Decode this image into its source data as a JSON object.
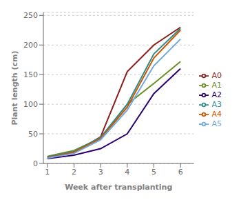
{
  "chart_data": {
    "type": "line",
    "xlabel": "Week after transplanting",
    "ylabel": "Plant length (cm)",
    "x": [
      1,
      2,
      3,
      4,
      5,
      6
    ],
    "series": [
      {
        "name": "A0",
        "color": "#8B1A1A",
        "values": [
          10,
          18,
          45,
          155,
          200,
          230
        ]
      },
      {
        "name": "A1",
        "color": "#6B8E23",
        "values": [
          12,
          22,
          43,
          100,
          135,
          172
        ]
      },
      {
        "name": "A2",
        "color": "#2B0070",
        "values": [
          8,
          14,
          25,
          50,
          118,
          160
        ]
      },
      {
        "name": "A3",
        "color": "#2E8B8B",
        "values": [
          11,
          20,
          44,
          100,
          185,
          228
        ]
      },
      {
        "name": "A4",
        "color": "#CC5500",
        "values": [
          10,
          19,
          42,
          95,
          178,
          225
        ]
      },
      {
        "name": "A5",
        "color": "#6FA8DC",
        "values": [
          9,
          17,
          40,
          90,
          165,
          210
        ]
      }
    ],
    "xlim": [
      0.85,
      6.5
    ],
    "ylim": [
      0,
      255
    ],
    "xticks": [
      1,
      2,
      3,
      4,
      5,
      6
    ],
    "yticks": [
      0,
      50,
      100,
      150,
      200,
      250
    ],
    "grid": "y",
    "legend": "right"
  }
}
